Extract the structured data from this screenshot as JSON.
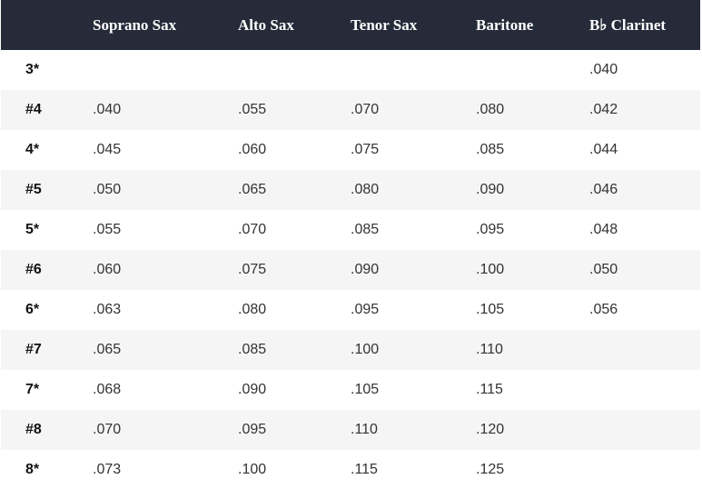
{
  "table": {
    "headers": [
      "",
      "Soprano Sax",
      "Alto Sax",
      "Tenor Sax",
      "Baritone",
      "B♭ Clarinet"
    ],
    "rows": [
      [
        "3*",
        "",
        "",
        "",
        "",
        ".040"
      ],
      [
        "#4",
        ".040",
        ".055",
        ".070",
        ".080",
        ".042"
      ],
      [
        "4*",
        ".045",
        ".060",
        ".075",
        ".085",
        ".044"
      ],
      [
        "#5",
        ".050",
        ".065",
        ".080",
        ".090",
        ".046"
      ],
      [
        "5*",
        ".055",
        ".070",
        ".085",
        ".095",
        ".048"
      ],
      [
        "#6",
        ".060",
        ".075",
        ".090",
        ".100",
        ".050"
      ],
      [
        "6*",
        ".063",
        ".080",
        ".095",
        ".105",
        ".056"
      ],
      [
        "#7",
        ".065",
        ".085",
        ".100",
        ".110",
        ""
      ],
      [
        "7*",
        ".068",
        ".090",
        ".105",
        ".115",
        ""
      ],
      [
        "#8",
        ".070",
        ".095",
        ".110",
        ".120",
        ""
      ],
      [
        "8*",
        ".073",
        ".100",
        ".115",
        ".125",
        ""
      ]
    ]
  },
  "colors": {
    "header_bg": "#262b3a",
    "stripe": "#f5f5f5"
  }
}
